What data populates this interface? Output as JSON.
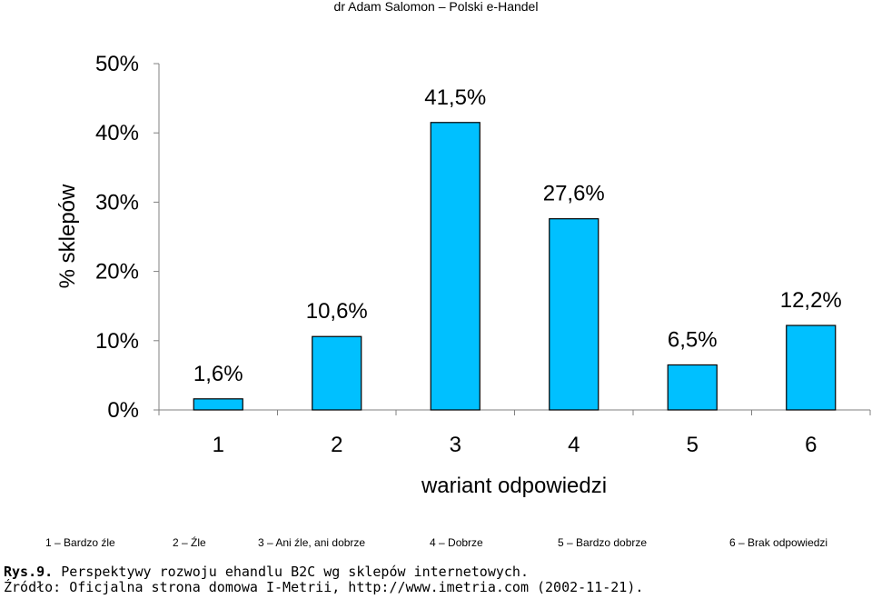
{
  "header": {
    "text": "dr Adam Salomon – Polski e-Handel"
  },
  "chart_data": {
    "type": "bar",
    "categories": [
      "1",
      "2",
      "3",
      "4",
      "5",
      "6"
    ],
    "values": [
      1.6,
      10.6,
      41.5,
      27.6,
      6.5,
      12.2
    ],
    "data_labels": [
      "1,6%",
      "10,6%",
      "41,5%",
      "27,6%",
      "6,5%",
      "12,2%"
    ],
    "title": "",
    "xlabel": "wariant odpowiedzi",
    "ylabel": "% sklepów",
    "ylim": [
      0,
      50
    ],
    "y_ticks": [
      0,
      10,
      20,
      30,
      40,
      50
    ],
    "y_tick_labels": [
      "0%",
      "10%",
      "20%",
      "30%",
      "40%",
      "50%"
    ],
    "grid": false,
    "bar_color": "#00C0FF",
    "bar_edge_color": "#000000"
  },
  "legend": {
    "items": [
      {
        "num": "1",
        "label": "Bardzo źle"
      },
      {
        "num": "2",
        "label": "Źle"
      },
      {
        "num": "3",
        "label": "Ani źle, ani dobrze"
      },
      {
        "num": "4",
        "label": "Dobrze"
      },
      {
        "num": "5",
        "label": "Bardzo dobrze"
      },
      {
        "num": "6",
        "label": "Brak odpowiedzi"
      }
    ]
  },
  "caption": {
    "figure_number": "Rys.9.",
    "figure_text": " Perspektywy rozwoju ehandlu B2C wg sklepów internetowych.",
    "source": "Źródło: Oficjalna strona domowa I-Metrii, http://www.imetria.com (2002-11-21)."
  }
}
